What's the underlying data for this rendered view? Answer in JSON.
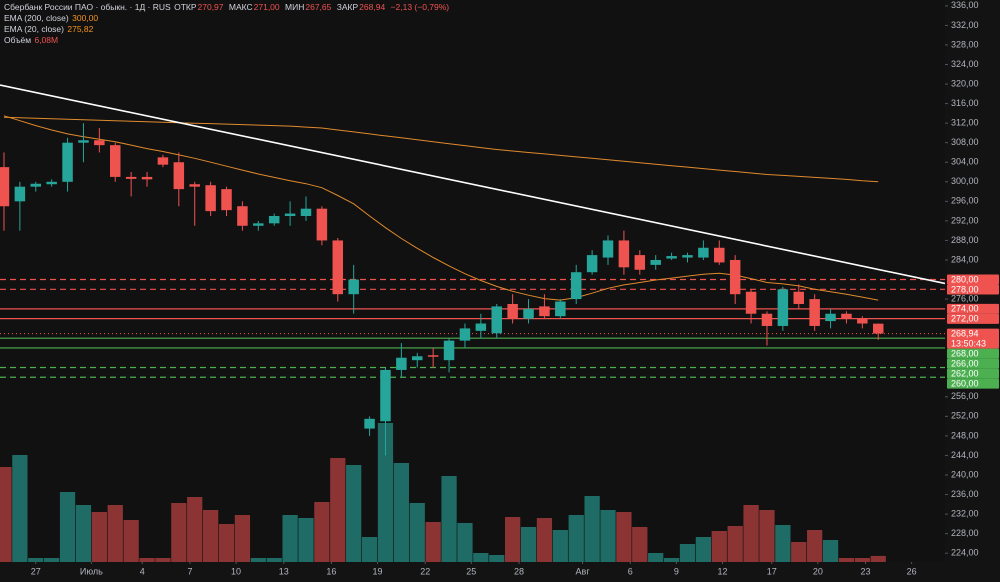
{
  "chart_data": {
    "type": "candlestick",
    "title": "Сбербанк России ПАО · обыкн. · 1Д · RUS",
    "ohlc_header": [
      {
        "label": "ОТКР",
        "value": "270,97"
      },
      {
        "label": "МАКС",
        "value": "271,00"
      },
      {
        "label": "МИН",
        "value": "267,65"
      },
      {
        "label": "ЗАКР",
        "value": "268,94"
      }
    ],
    "change": "−2,13 (−0,79%)",
    "up_color": "#26a69a",
    "down_color": "#ef5350",
    "volume_up_color": "#1f6b66",
    "volume_down_color": "#8c3434",
    "open": [
      303,
      296,
      299,
      299.5,
      300,
      308,
      308.5,
      307.5,
      301,
      301,
      305,
      304,
      299.5,
      299.3,
      298.5,
      295,
      291,
      291.5,
      293,
      293,
      294.5,
      288,
      277,
      249.5,
      251,
      261.5,
      263.5,
      264.5,
      263.5,
      267.5,
      269.5,
      269,
      275,
      272,
      274.5,
      272.5,
      276,
      281.5,
      284.5,
      288,
      285,
      283,
      284.3,
      284.5,
      284.5,
      286.5,
      284,
      277.5,
      273,
      270.5,
      277.5,
      276,
      271.5,
      273,
      272,
      270.97
    ],
    "high": [
      306,
      300,
      300,
      300.5,
      309,
      312,
      311,
      308,
      302,
      302,
      305.5,
      306,
      300,
      300,
      299,
      296,
      292,
      293.5,
      296,
      297,
      295,
      288.5,
      283,
      252,
      262,
      267,
      265,
      266,
      268,
      271,
      273,
      275,
      277,
      276,
      277,
      276,
      283,
      286,
      289,
      290,
      286,
      285,
      285.5,
      285.5,
      288,
      288,
      285,
      278,
      273.5,
      278.5,
      279,
      277,
      274,
      273.5,
      272.5,
      271
    ],
    "low": [
      290,
      290,
      298,
      299,
      298,
      304,
      306,
      300,
      297,
      299,
      303,
      295,
      291,
      293,
      293,
      290,
      290,
      291,
      291,
      292,
      287,
      275.5,
      273,
      248,
      244,
      260,
      262,
      262,
      261,
      266,
      268,
      268,
      271,
      271,
      272,
      272,
      275,
      281,
      283,
      281,
      281,
      282,
      284,
      283.5,
      284,
      283,
      275,
      271,
      266.5,
      269.5,
      274,
      269.5,
      270,
      271,
      270,
      267.65
    ],
    "close": [
      295,
      299,
      299.6,
      300,
      308,
      308.5,
      307.5,
      301,
      300.6,
      300.5,
      303.5,
      298.5,
      299,
      294,
      294.2,
      291,
      291.5,
      293,
      293.5,
      294.5,
      288,
      277,
      280,
      251.5,
      261.5,
      264,
      264.3,
      264.2,
      267.5,
      270,
      271,
      274.5,
      272,
      274,
      272.5,
      275.5,
      281.5,
      285,
      288,
      282.5,
      282,
      284,
      284.8,
      285,
      286.5,
      283.5,
      277,
      273,
      270.5,
      278,
      275,
      270.5,
      273,
      272,
      271,
      268.94
    ],
    "volume": [
      95,
      107,
      4,
      4,
      70,
      57,
      50,
      57,
      42,
      4,
      4,
      59,
      65,
      52,
      38,
      47,
      4,
      4,
      47,
      44,
      60,
      104,
      97,
      25,
      139,
      99,
      59,
      40,
      86,
      39,
      9,
      7,
      45,
      35,
      44,
      32,
      47,
      66,
      52,
      50,
      35,
      9,
      4,
      18,
      25,
      31,
      36,
      57,
      52,
      37,
      20,
      32,
      22,
      4,
      4,
      6.08
    ],
    "volume_legend": {
      "name": "Объём",
      "value_label": "6,08M"
    },
    "series": [
      {
        "name": "EMA (200, close)",
        "value_label": "300,00",
        "color": "#e08a2c",
        "values": [
          313.2,
          313.1,
          313.0,
          312.9,
          312.8,
          312.7,
          312.6,
          312.5,
          312.4,
          312.3,
          312.2,
          312.1,
          312.0,
          311.9,
          311.8,
          311.7,
          311.6,
          311.5,
          311.4,
          311.2,
          311.0,
          310.6,
          310.2,
          309.8,
          309.4,
          309.0,
          308.6,
          308.2,
          307.8,
          307.4,
          307.0,
          306.6,
          306.3,
          306.0,
          305.7,
          305.4,
          305.1,
          304.8,
          304.5,
          304.2,
          303.9,
          303.6,
          303.3,
          303.0,
          302.7,
          302.4,
          302.1,
          301.8,
          301.5,
          301.3,
          301.1,
          300.9,
          300.7,
          300.5,
          300.2,
          300.0
        ]
      },
      {
        "name": "EMA (20, close)",
        "value_label": "275,82",
        "color": "#e08a2c",
        "values": [
          313.5,
          312.5,
          311.5,
          310.6,
          309.8,
          309.2,
          308.7,
          308.2,
          307.5,
          306.8,
          306.2,
          305.5,
          304.8,
          304.0,
          303.2,
          302.4,
          301.6,
          300.9,
          300.2,
          299.6,
          298.8,
          297.2,
          295.5,
          293.0,
          290.6,
          288.4,
          286.4,
          284.5,
          282.8,
          281.2,
          279.8,
          278.6,
          277.6,
          276.8,
          276.1,
          275.8,
          276.3,
          277.2,
          278.2,
          278.9,
          279.4,
          279.9,
          280.3,
          280.7,
          281.1,
          281.3,
          280.9,
          280.2,
          279.4,
          279.1,
          278.7,
          278.0,
          277.5,
          277.0,
          276.4,
          275.8
        ]
      }
    ],
    "trendline": {
      "color": "#ffffff",
      "points": [
        [
          -0.25,
          319.8
        ],
        [
          59.2,
          279.2
        ]
      ]
    },
    "levels": [
      {
        "value": 280,
        "label": "280,00",
        "color": "#ef5350",
        "style": "dashed"
      },
      {
        "value": 278,
        "label": "278,00",
        "color": "#ef5350",
        "style": "dashed"
      },
      {
        "value": 274,
        "label": "274,00",
        "color": "#ef5350",
        "style": "solid"
      },
      {
        "value": 272,
        "label": "272,00",
        "color": "#ef5350",
        "style": "solid"
      },
      {
        "value": 268,
        "label": "268,00",
        "color": "#4caf50",
        "style": "solid"
      },
      {
        "value": 266,
        "label": "266,00",
        "color": "#4caf50",
        "style": "solid"
      },
      {
        "value": 262,
        "label": "262,00",
        "color": "#4caf50",
        "style": "dashed"
      },
      {
        "value": 260,
        "label": "260,00",
        "color": "#4caf50",
        "style": "dashed"
      }
    ],
    "last_price": {
      "value": 268.94,
      "label": "268,94",
      "time": "13:50:43",
      "color": "#ef5350"
    },
    "xlim": [
      -0.25,
      59.2
    ],
    "ylim": [
      222.2,
      337.2
    ],
    "xticks": [
      {
        "value": 2,
        "label": "27"
      },
      {
        "value": 5.5,
        "label": "Июль"
      },
      {
        "value": 8.7,
        "label": "4"
      },
      {
        "value": 11.7,
        "label": "7"
      },
      {
        "value": 14.6,
        "label": "10"
      },
      {
        "value": 17.6,
        "label": "13"
      },
      {
        "value": 20.6,
        "label": "16"
      },
      {
        "value": 23.5,
        "label": "19"
      },
      {
        "value": 26.5,
        "label": "22"
      },
      {
        "value": 29.4,
        "label": "25"
      },
      {
        "value": 32.4,
        "label": "28"
      },
      {
        "value": 36.4,
        "label": "Авг"
      },
      {
        "value": 39.4,
        "label": "6"
      },
      {
        "value": 42.3,
        "label": "9"
      },
      {
        "value": 45.2,
        "label": "12"
      },
      {
        "value": 48.3,
        "label": "17"
      },
      {
        "value": 51.2,
        "label": "20"
      },
      {
        "value": 54.2,
        "label": "23"
      },
      {
        "value": 57.1,
        "label": "26"
      }
    ],
    "yticks": [
      {
        "value": 336,
        "label": "336,00"
      },
      {
        "value": 332,
        "label": "332,00"
      },
      {
        "value": 328,
        "label": "328,00"
      },
      {
        "value": 324,
        "label": "324,00"
      },
      {
        "value": 320,
        "label": "320,00"
      },
      {
        "value": 316,
        "label": "316,00"
      },
      {
        "value": 312,
        "label": "312,00"
      },
      {
        "value": 308,
        "label": "308,00"
      },
      {
        "value": 304,
        "label": "304,00"
      },
      {
        "value": 300,
        "label": "300,00"
      },
      {
        "value": 296,
        "label": "296,00"
      },
      {
        "value": 292,
        "label": "292,00"
      },
      {
        "value": 288,
        "label": "288,00"
      },
      {
        "value": 284,
        "label": "284,00"
      },
      {
        "value": 276,
        "label": "276,00"
      },
      {
        "value": 256,
        "label": "256,00"
      },
      {
        "value": 252,
        "label": "252,00"
      },
      {
        "value": 248,
        "label": "248,00"
      },
      {
        "value": 244,
        "label": "244,00"
      },
      {
        "value": 240,
        "label": "240,00"
      },
      {
        "value": 236,
        "label": "236,00"
      },
      {
        "value": 232,
        "label": "232,00"
      },
      {
        "value": 228,
        "label": "228,00"
      },
      {
        "value": 224,
        "label": "224,00"
      }
    ]
  }
}
